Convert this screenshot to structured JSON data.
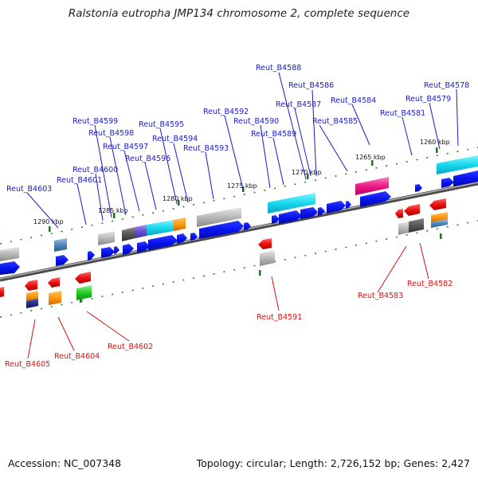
{
  "title": "Ralstonia eutropha JMP134 chromosome 2, complete sequence",
  "footer": {
    "accession": "Accession: NC_007348",
    "summary": "Topology: circular; Length: 2,726,152 bp; Genes: 2,427"
  },
  "ticks": [
    "1260 kbp",
    "1265 kbp",
    "1270 kbp",
    "1275 kbp",
    "1280 kbp",
    "1285 kbp",
    "1290 kbp"
  ],
  "genes_forward": [
    "Reut_B4578",
    "Reut_B4579",
    "Reut_B4581",
    "Reut_B4584",
    "Reut_B4585",
    "Reut_B4586",
    "Reut_B4587",
    "Reut_B4588",
    "Reut_B4589",
    "Reut_B4590",
    "Reut_B4592",
    "Reut_B4593",
    "Reut_B4594",
    "Reut_B4595",
    "Reut_B4596",
    "Reut_B4597",
    "Reut_B4598",
    "Reut_B4599",
    "Reut_B4600",
    "Reut_B4601",
    "Reut_B4603"
  ],
  "genes_reverse": [
    "Reut_B4582",
    "Reut_B4583",
    "Reut_B4591",
    "Reut_B4602",
    "Reut_B4604",
    "Reut_B4605"
  ],
  "colors": {
    "forward_label": "#1a1acc",
    "reverse_label": "#dd1111",
    "gene_blue": "#0a14ee",
    "backbone": "#6e6e6e"
  }
}
